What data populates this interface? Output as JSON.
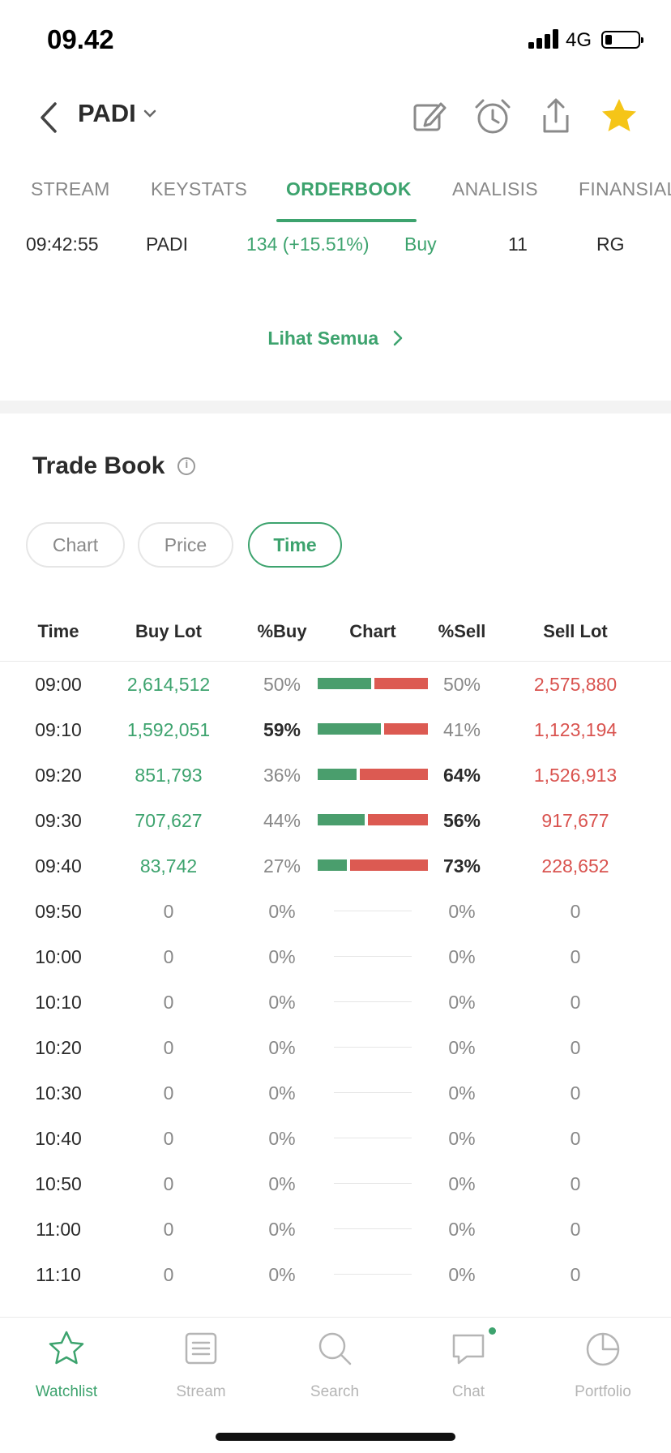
{
  "status": {
    "time": "09.42",
    "network": "4G"
  },
  "header": {
    "ticker": "PADI"
  },
  "tabs": [
    {
      "label": "STREAM"
    },
    {
      "label": "KEYSTATS"
    },
    {
      "label": "ORDERBOOK"
    },
    {
      "label": "ANALISIS"
    },
    {
      "label": "FINANSIAL"
    }
  ],
  "trade": {
    "time": "09:42:55",
    "code": "PADI",
    "price": "134 (+15.51%)",
    "action": "Buy",
    "lot": "11",
    "board": "RG"
  },
  "see_all": "Lihat Semua",
  "tradebook": {
    "title": "Trade Book",
    "pills": [
      "Chart",
      "Price",
      "Time"
    ],
    "headers": {
      "time": "Time",
      "buy_lot": "Buy Lot",
      "pbuy": "%Buy",
      "chart": "Chart",
      "psell": "%Sell",
      "sell_lot": "Sell Lot"
    },
    "rows": [
      {
        "time": "09:00",
        "buy_lot": "2,614,512",
        "pbuy": "50%",
        "psell": "50%",
        "sell_lot": "2,575,880",
        "buy_frac": 0.5,
        "dominant": ""
      },
      {
        "time": "09:10",
        "buy_lot": "1,592,051",
        "pbuy": "59%",
        "psell": "41%",
        "sell_lot": "1,123,194",
        "buy_frac": 0.59,
        "dominant": "buy"
      },
      {
        "time": "09:20",
        "buy_lot": "851,793",
        "pbuy": "36%",
        "psell": "64%",
        "sell_lot": "1,526,913",
        "buy_frac": 0.36,
        "dominant": "sell"
      },
      {
        "time": "09:30",
        "buy_lot": "707,627",
        "pbuy": "44%",
        "psell": "56%",
        "sell_lot": "917,677",
        "buy_frac": 0.44,
        "dominant": "sell"
      },
      {
        "time": "09:40",
        "buy_lot": "83,742",
        "pbuy": "27%",
        "psell": "73%",
        "sell_lot": "228,652",
        "buy_frac": 0.27,
        "dominant": "sell"
      },
      {
        "time": "09:50",
        "buy_lot": "0",
        "pbuy": "0%",
        "psell": "0%",
        "sell_lot": "0",
        "buy_frac": 0,
        "dominant": ""
      },
      {
        "time": "10:00",
        "buy_lot": "0",
        "pbuy": "0%",
        "psell": "0%",
        "sell_lot": "0",
        "buy_frac": 0,
        "dominant": ""
      },
      {
        "time": "10:10",
        "buy_lot": "0",
        "pbuy": "0%",
        "psell": "0%",
        "sell_lot": "0",
        "buy_frac": 0,
        "dominant": ""
      },
      {
        "time": "10:20",
        "buy_lot": "0",
        "pbuy": "0%",
        "psell": "0%",
        "sell_lot": "0",
        "buy_frac": 0,
        "dominant": ""
      },
      {
        "time": "10:30",
        "buy_lot": "0",
        "pbuy": "0%",
        "psell": "0%",
        "sell_lot": "0",
        "buy_frac": 0,
        "dominant": ""
      },
      {
        "time": "10:40",
        "buy_lot": "0",
        "pbuy": "0%",
        "psell": "0%",
        "sell_lot": "0",
        "buy_frac": 0,
        "dominant": ""
      },
      {
        "time": "10:50",
        "buy_lot": "0",
        "pbuy": "0%",
        "psell": "0%",
        "sell_lot": "0",
        "buy_frac": 0,
        "dominant": ""
      },
      {
        "time": "11:00",
        "buy_lot": "0",
        "pbuy": "0%",
        "psell": "0%",
        "sell_lot": "0",
        "buy_frac": 0,
        "dominant": ""
      },
      {
        "time": "11:10",
        "buy_lot": "0",
        "pbuy": "0%",
        "psell": "0%",
        "sell_lot": "0",
        "buy_frac": 0,
        "dominant": ""
      }
    ]
  },
  "nav": [
    {
      "label": "Watchlist",
      "icon": "star-outline-icon"
    },
    {
      "label": "Stream",
      "icon": "document-icon"
    },
    {
      "label": "Search",
      "icon": "search-icon"
    },
    {
      "label": "Chat",
      "icon": "chat-bubble-icon"
    },
    {
      "label": "Portfolio",
      "icon": "pie-chart-icon"
    }
  ],
  "colors": {
    "accent": "#3da36e",
    "buy": "#4a9e6d",
    "sell": "#dc5a52",
    "favorite": "#f5c518"
  }
}
